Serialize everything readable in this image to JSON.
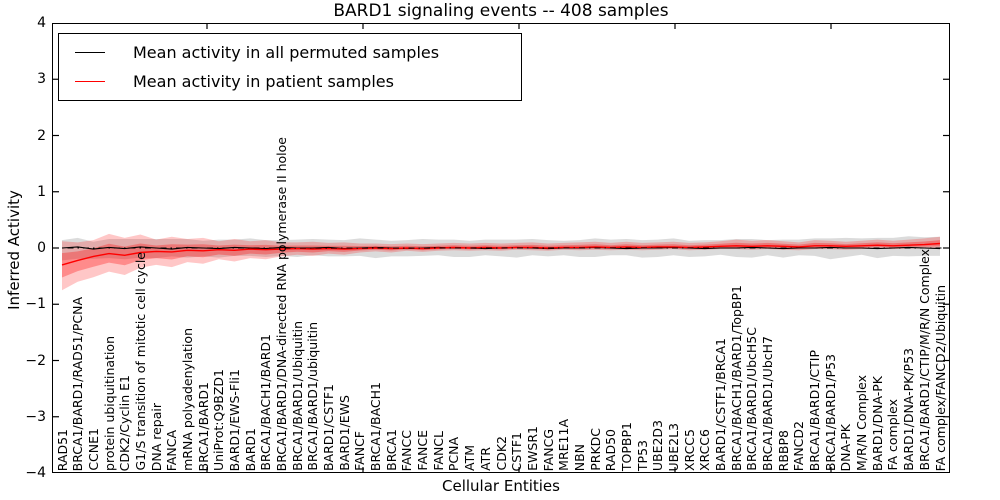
{
  "chart_data": {
    "type": "line",
    "title": "BARD1 signaling events -- 408 samples",
    "xlabel": "Cellular Entities",
    "ylabel": "Inferred Activity",
    "ylim": [
      -4,
      4
    ],
    "yticks": [
      4,
      3,
      2,
      1,
      0,
      -1,
      -2,
      -3,
      -4
    ],
    "grid": false,
    "legend_position": "upper left",
    "zero_line": {
      "style": "dash-dot",
      "color": "#000000",
      "y": 0
    },
    "categories": [
      "RAD51",
      "BRCA1/BARD1/RAD51/PCNA",
      "CCNE1",
      "protein ubiquitination",
      "CDK2/Cyclin E1",
      "G1/S transition of mitotic cell cycle",
      "DNA repair",
      "FANCA",
      "mRNA polyadenylation",
      "BRCA1/BARD1",
      "UniProt:Q9BZD1",
      "BARD1/EWS-Fli1",
      "BARD1",
      "BRCA1/BACH1/BARD1",
      "BRCA1/BARD1/DNA-directed RNA polymerase II holoe",
      "BRCA1/BARD1/Ubiquitin",
      "BRCA1/BARD1/ubiquitin",
      "BARD1/CSTF1",
      "BARD1/EWS",
      "FANCF",
      "BRCA1/BACH1",
      "BRCA1",
      "FANCC",
      "FANCE",
      "FANCL",
      "PCNA",
      "ATM",
      "ATR",
      "CDK2",
      "CSTF1",
      "EWSR1",
      "FANCG",
      "MRE11A",
      "NBN",
      "PRKDC",
      "RAD50",
      "TOPBP1",
      "TP53",
      "UBE2D3",
      "UBE2L3",
      "XRCC5",
      "XRCC6",
      "BARD1/CSTF1/BRCA1",
      "BRCA1/BACH1/BARD1/TopBP1",
      "BRCA1/BARD1/UbcH5C",
      "BRCA1/BARD1/UbcH7",
      "RBBP8",
      "FANCD2",
      "BRCA1/BARD1/CTIP",
      "BRCA1/BARD1/P53",
      "DNA-PK",
      "M/R/N Complex",
      "BARD1/DNA-PK",
      "FA complex",
      "BARD1/DNA-PK/P53",
      "BRCA1/BARD1/CTIP/M/R/N Complex",
      "FA complex/FANCD2/Ubiquitin"
    ],
    "series": [
      {
        "name": "Mean activity in all permuted samples",
        "color": "#000000",
        "band_color": "#000000",
        "band_opacity": 0.14,
        "values": [
          0,
          0.02,
          -0.02,
          0.01,
          -0.01,
          0.02,
          0,
          -0.02,
          0.01,
          0,
          -0.01,
          0.01,
          0,
          -0.01,
          0.01,
          0,
          0,
          0.01,
          -0.01,
          0,
          0.01,
          0,
          -0.01,
          0,
          0.01,
          0,
          0,
          -0.01,
          0,
          0.01,
          0,
          -0.01,
          0,
          0,
          0.01,
          0,
          -0.01,
          0,
          0,
          0.01,
          0,
          -0.01,
          0,
          0,
          0.01,
          0,
          -0.01,
          0,
          0,
          0.01,
          0,
          0,
          -0.01,
          0,
          0.01,
          0,
          -0.01
        ],
        "band_half_width": [
          0.14,
          0.16,
          0.13,
          0.15,
          0.17,
          0.14,
          0.16,
          0.18,
          0.15,
          0.13,
          0.16,
          0.14,
          0.17,
          0.15,
          0.13,
          0.15,
          0.16,
          0.14,
          0.15,
          0.17,
          0.14,
          0.13,
          0.15,
          0.16,
          0.14,
          0.15,
          0.13,
          0.16,
          0.15,
          0.14,
          0.16,
          0.15,
          0.13,
          0.14,
          0.16,
          0.15,
          0.17,
          0.14,
          0.15,
          0.16,
          0.13,
          0.15,
          0.14,
          0.16,
          0.15,
          0.14,
          0.16,
          0.15,
          0.17,
          0.16,
          0.18,
          0.17,
          0.19,
          0.18,
          0.2,
          0.19,
          0.21
        ]
      },
      {
        "name": "Mean activity in patient samples",
        "color": "#ff0000",
        "band_color": "#ff0000",
        "band_opacity": 0.22,
        "values": [
          -0.3,
          -0.22,
          -0.15,
          -0.1,
          -0.13,
          -0.08,
          -0.06,
          -0.07,
          -0.04,
          -0.05,
          -0.03,
          -0.04,
          -0.02,
          -0.03,
          -0.02,
          -0.01,
          -0.02,
          -0.01,
          -0.02,
          -0.01,
          0,
          -0.01,
          0,
          -0.01,
          0,
          0.01,
          0,
          0.01,
          0,
          0.01,
          0.01,
          0,
          0.01,
          0.01,
          0.02,
          0.01,
          0.02,
          0.01,
          0.02,
          0.02,
          0.01,
          0.02,
          0.03,
          0.04,
          0.03,
          0.04,
          0.03,
          0.02,
          0.04,
          0.04,
          0.03,
          0.04,
          0.05,
          0.04,
          0.05,
          0.06,
          0.08
        ],
        "band_lower": [
          -0.75,
          -0.6,
          -0.52,
          -0.42,
          -0.48,
          -0.35,
          -0.3,
          -0.34,
          -0.25,
          -0.28,
          -0.2,
          -0.24,
          -0.18,
          -0.2,
          -0.15,
          -0.12,
          -0.14,
          -0.1,
          -0.12,
          -0.08,
          -0.06,
          -0.08,
          -0.05,
          -0.07,
          -0.05,
          -0.04,
          -0.05,
          -0.04,
          -0.05,
          -0.03,
          -0.04,
          -0.05,
          -0.03,
          -0.04,
          -0.03,
          -0.04,
          -0.03,
          -0.04,
          -0.03,
          -0.02,
          -0.04,
          -0.03,
          -0.02,
          -0.02,
          -0.03,
          -0.02,
          -0.03,
          -0.04,
          -0.02,
          -0.02,
          -0.03,
          -0.02,
          -0.01,
          -0.02,
          -0.01,
          -0.01,
          -0.02
        ],
        "band_upper": [
          0.12,
          0.1,
          0.14,
          0.25,
          0.18,
          0.24,
          0.15,
          0.2,
          0.16,
          0.18,
          0.12,
          0.16,
          0.12,
          0.14,
          0.1,
          0.1,
          0.11,
          0.09,
          0.1,
          0.08,
          0.08,
          0.07,
          0.08,
          0.07,
          0.08,
          0.09,
          0.08,
          0.09,
          0.08,
          0.09,
          0.1,
          0.08,
          0.09,
          0.1,
          0.11,
          0.09,
          0.11,
          0.09,
          0.1,
          0.11,
          0.09,
          0.1,
          0.12,
          0.15,
          0.13,
          0.14,
          0.12,
          0.1,
          0.14,
          0.13,
          0.11,
          0.13,
          0.15,
          0.13,
          0.15,
          0.17,
          0.2
        ]
      }
    ]
  }
}
